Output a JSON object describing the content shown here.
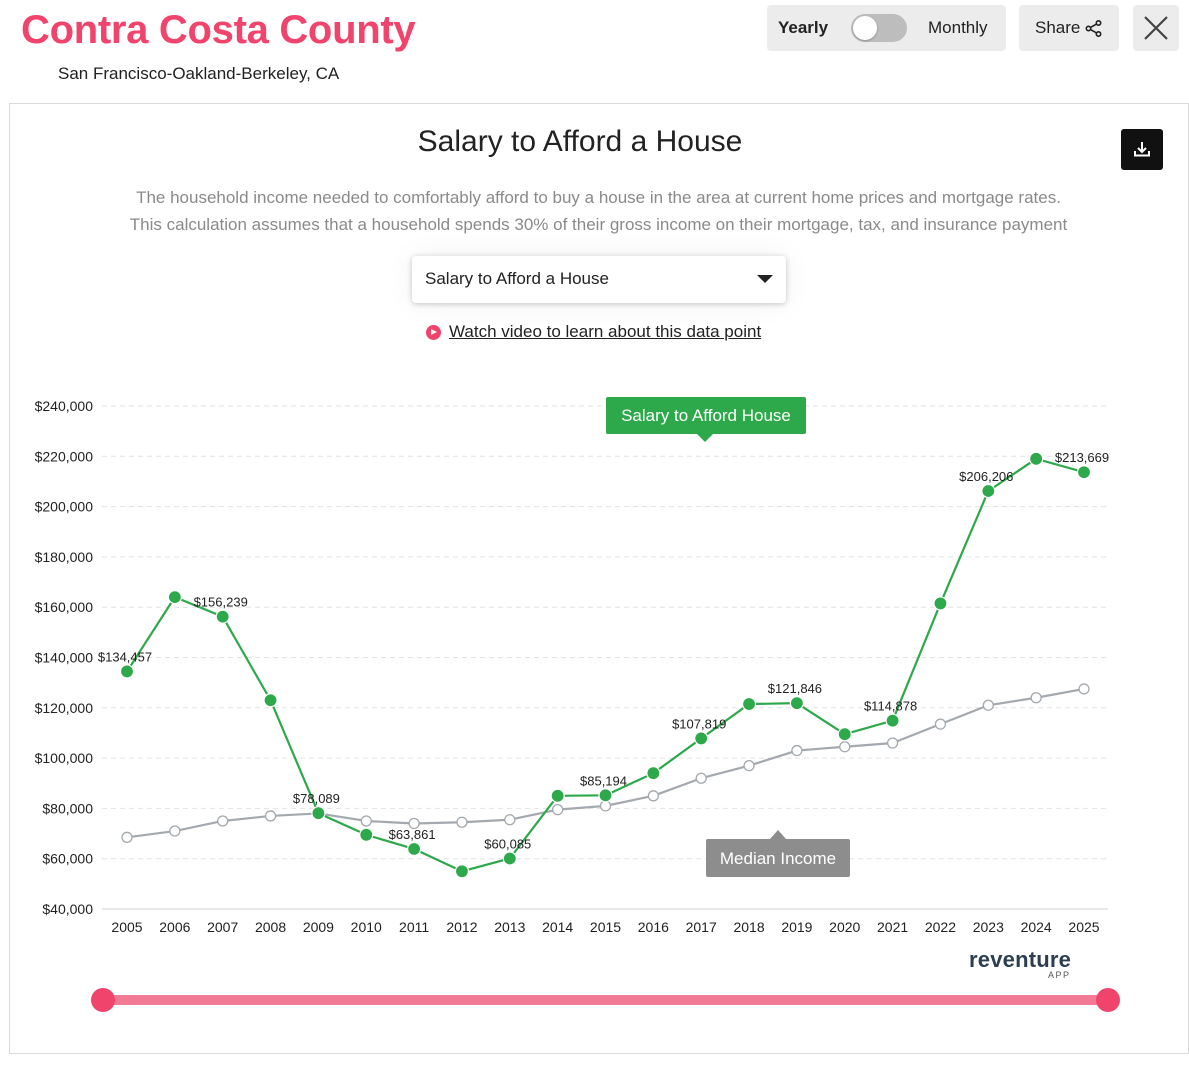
{
  "header": {
    "title": "Contra Costa County",
    "subtitle": "San Francisco-Oakland-Berkeley, CA"
  },
  "toggle": {
    "left_label": "Yearly",
    "right_label": "Monthly",
    "selected": "Yearly"
  },
  "share": {
    "label": "Share"
  },
  "chart_card": {
    "title": "Salary to Afford a House",
    "description_line1": "The household income needed to comfortably afford to buy a house in the area at current home prices and mortgage rates.",
    "description_line2": "This calculation assumes that a household spends 30% of their gross income on their mortgage, tax, and insurance payment",
    "select_value": "Salary to Afford a House",
    "video_link": "Watch video to learn about this data point"
  },
  "brand": {
    "name": "reventure",
    "sub": "APP"
  },
  "colors": {
    "accent": "#f0446c",
    "salary_series": "#2da84a",
    "income_series": "#a3a9ae",
    "slider": "#f37a95"
  },
  "chart_data": {
    "type": "line",
    "title": "Salary to Afford a House",
    "xlabel": "",
    "ylabel": "",
    "ylim": [
      40000,
      240000
    ],
    "yticks": [
      40000,
      60000,
      80000,
      100000,
      120000,
      140000,
      160000,
      180000,
      200000,
      220000,
      240000
    ],
    "ytick_labels": [
      "$40,000",
      "$60,000",
      "$80,000",
      "$100,000",
      "$120,000",
      "$140,000",
      "$160,000",
      "$180,000",
      "$200,000",
      "$220,000",
      "$240,000"
    ],
    "grid": true,
    "categories": [
      "2005",
      "2006",
      "2007",
      "2008",
      "2009",
      "2010",
      "2011",
      "2012",
      "2013",
      "2014",
      "2015",
      "2016",
      "2017",
      "2018",
      "2019",
      "2020",
      "2021",
      "2022",
      "2023",
      "2024",
      "2025"
    ],
    "series": [
      {
        "name": "Salary to Afford House",
        "color": "#2da84a",
        "values": [
          134457,
          164000,
          156239,
          123000,
          78089,
          69500,
          63861,
          55000,
          60085,
          85000,
          85194,
          94000,
          107819,
          121500,
          121846,
          109500,
          114878,
          161500,
          206206,
          219000,
          213669
        ],
        "data_labels": {
          "0": "$134,457",
          "2": "$156,239",
          "4": "$78,089",
          "6": "$63,861",
          "8": "$60,085",
          "10": "$85,194",
          "12": "$107,819",
          "14": "$121,846",
          "16": "$114,878",
          "18": "$206,206",
          "20": "$213,669"
        }
      },
      {
        "name": "Median Income",
        "color": "#a3a9ae",
        "values": [
          68500,
          71000,
          75000,
          77000,
          78000,
          75000,
          74000,
          74500,
          75500,
          79500,
          81000,
          85000,
          92000,
          97000,
          103000,
          104500,
          106000,
          113500,
          121000,
          124000,
          127500
        ]
      }
    ],
    "legend_labels": {
      "salary": "Salary to Afford House",
      "income": "Median Income"
    }
  }
}
